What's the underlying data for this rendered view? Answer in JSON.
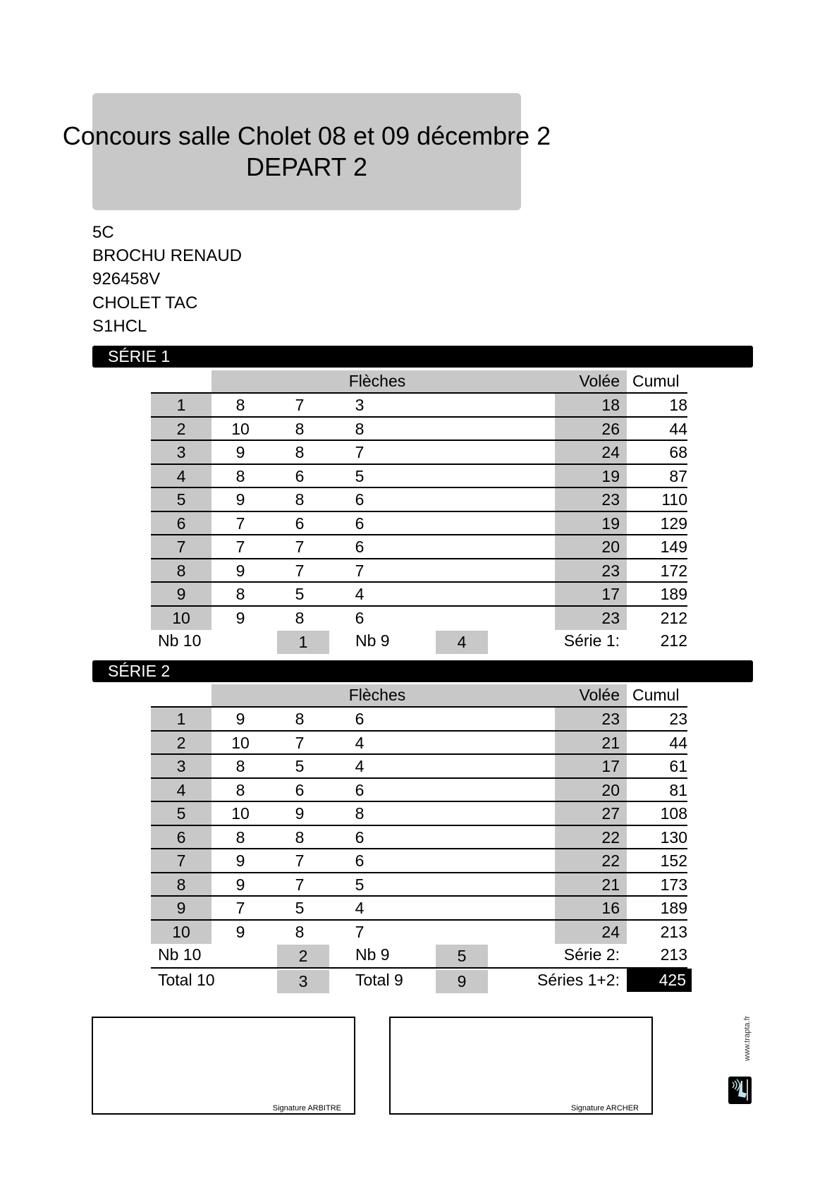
{
  "header": {
    "title": "Concours salle Cholet 08 et 09 décembre 2",
    "subtitle": "DEPART 2"
  },
  "archer": {
    "target": "5C",
    "name": "BROCHU RENAUD",
    "license": "926458V",
    "club": "CHOLET TAC",
    "category": "S1HCL"
  },
  "columns": {
    "arrows": "Flèches",
    "end": "Volée",
    "cumul": "Cumul"
  },
  "series": [
    {
      "title": "SÉRIE 1",
      "rows": [
        {
          "n": "1",
          "a": [
            "8",
            "7",
            "3"
          ],
          "v": "18",
          "c": "18"
        },
        {
          "n": "2",
          "a": [
            "10",
            "8",
            "8"
          ],
          "v": "26",
          "c": "44"
        },
        {
          "n": "3",
          "a": [
            "9",
            "8",
            "7"
          ],
          "v": "24",
          "c": "68"
        },
        {
          "n": "4",
          "a": [
            "8",
            "6",
            "5"
          ],
          "v": "19",
          "c": "87"
        },
        {
          "n": "5",
          "a": [
            "9",
            "8",
            "6"
          ],
          "v": "23",
          "c": "110"
        },
        {
          "n": "6",
          "a": [
            "7",
            "6",
            "6"
          ],
          "v": "19",
          "c": "129"
        },
        {
          "n": "7",
          "a": [
            "7",
            "7",
            "6"
          ],
          "v": "20",
          "c": "149"
        },
        {
          "n": "8",
          "a": [
            "9",
            "7",
            "7"
          ],
          "v": "23",
          "c": "172"
        },
        {
          "n": "9",
          "a": [
            "8",
            "5",
            "4"
          ],
          "v": "17",
          "c": "189"
        },
        {
          "n": "10",
          "a": [
            "9",
            "8",
            "6"
          ],
          "v": "23",
          "c": "212"
        }
      ],
      "nb10_label": "Nb 10",
      "nb10": "1",
      "nb9_label": "Nb 9",
      "nb9": "4",
      "total_label": "Série 1:",
      "total": "212"
    },
    {
      "title": "SÉRIE 2",
      "rows": [
        {
          "n": "1",
          "a": [
            "9",
            "8",
            "6"
          ],
          "v": "23",
          "c": "23"
        },
        {
          "n": "2",
          "a": [
            "10",
            "7",
            "4"
          ],
          "v": "21",
          "c": "44"
        },
        {
          "n": "3",
          "a": [
            "8",
            "5",
            "4"
          ],
          "v": "17",
          "c": "61"
        },
        {
          "n": "4",
          "a": [
            "8",
            "6",
            "6"
          ],
          "v": "20",
          "c": "81"
        },
        {
          "n": "5",
          "a": [
            "10",
            "9",
            "8"
          ],
          "v": "27",
          "c": "108"
        },
        {
          "n": "6",
          "a": [
            "8",
            "8",
            "6"
          ],
          "v": "22",
          "c": "130"
        },
        {
          "n": "7",
          "a": [
            "9",
            "7",
            "6"
          ],
          "v": "22",
          "c": "152"
        },
        {
          "n": "8",
          "a": [
            "9",
            "7",
            "5"
          ],
          "v": "21",
          "c": "173"
        },
        {
          "n": "9",
          "a": [
            "7",
            "5",
            "4"
          ],
          "v": "16",
          "c": "189"
        },
        {
          "n": "10",
          "a": [
            "9",
            "8",
            "7"
          ],
          "v": "24",
          "c": "213"
        }
      ],
      "nb10_label": "Nb 10",
      "nb10": "2",
      "nb9_label": "Nb 9",
      "nb9": "5",
      "total_label": "Série 2:",
      "total": "213"
    }
  ],
  "totals": {
    "total10_label": "Total 10",
    "total10": "3",
    "total9_label": "Total 9",
    "total9": "9",
    "grand_label": "Séries 1+2:",
    "grand": "425"
  },
  "signatures": {
    "referee": "Signature ARBITRE",
    "archer": "Signature ARCHER"
  },
  "footer": {
    "website": "www.trapta.fr",
    "logo_icon": "trapta-logo-icon"
  }
}
